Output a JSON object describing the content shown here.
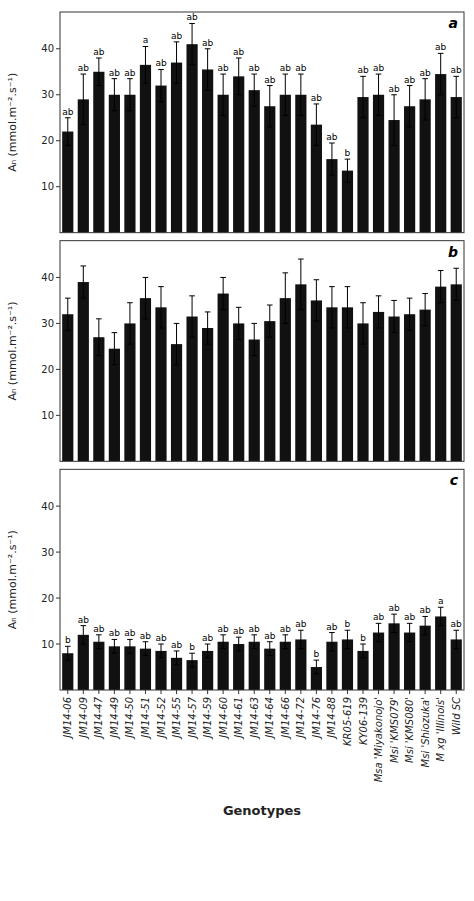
{
  "chart_data": [
    {
      "type": "bar",
      "title": "a",
      "ylabel": "Aₙ (mmol.m⁻².s⁻¹)",
      "categories": [
        "JM14-06",
        "JM14-09",
        "JM14-47",
        "JM14-49",
        "JM14-50",
        "JM14-51",
        "JM14-52",
        "JM14-55",
        "JM14-57",
        "JM14-59",
        "JM14-60",
        "JM14-61",
        "JM14-63",
        "JM14-64",
        "JM14-66",
        "JM14-72",
        "JM14-76",
        "JM14-88",
        "KR05-619",
        "KY06-139",
        "Msa 'Miyakonojo'",
        "Msi 'KMS079'",
        "Msi 'KMS080'",
        "Msi 'Shiozuka'",
        "M xg 'Illinois'",
        "Wild SC"
      ],
      "values": [
        22.0,
        29.0,
        35.0,
        30.0,
        30.0,
        36.5,
        32.0,
        37.0,
        41.0,
        35.5,
        30.0,
        34.0,
        31.0,
        27.5,
        30.0,
        30.0,
        23.5,
        16.0,
        13.5,
        29.5,
        30.0,
        24.5,
        27.5,
        29.0,
        34.5,
        29.5
      ],
      "errors": [
        3.0,
        5.5,
        3.0,
        3.5,
        3.5,
        4.0,
        3.5,
        4.5,
        4.5,
        4.5,
        4.5,
        4.0,
        3.5,
        4.5,
        4.5,
        4.5,
        4.5,
        3.5,
        2.5,
        4.5,
        4.5,
        5.5,
        4.5,
        4.5,
        4.5,
        4.5
      ],
      "annotations": [
        "ab",
        "ab",
        "ab",
        "ab",
        "ab",
        "a",
        "ab",
        "ab",
        "ab",
        "ab",
        "ab",
        "ab",
        "ab",
        "ab",
        "ab",
        "ab",
        "ab",
        "ab",
        "b",
        "ab",
        "ab",
        "ab",
        "ab",
        "ab",
        "ab",
        "ab"
      ],
      "color": "#111111",
      "ylim": [
        0,
        48
      ],
      "yticks": [
        10,
        20,
        30,
        40
      ],
      "grid": false,
      "tick_labels": "y"
    },
    {
      "type": "bar",
      "title": "b",
      "ylabel": "Aₙ (mmol.m⁻².s⁻¹)",
      "categories": [
        "JM14-06",
        "JM14-09",
        "JM14-47",
        "JM14-49",
        "JM14-50",
        "JM14-51",
        "JM14-52",
        "JM14-55",
        "JM14-57",
        "JM14-59",
        "JM14-60",
        "JM14-61",
        "JM14-63",
        "JM14-64",
        "JM14-66",
        "JM14-72",
        "JM14-76",
        "JM14-88",
        "KR05-619",
        "KY06-139",
        "Msa 'Miyakonojo'",
        "Msi 'KMS079'",
        "Msi 'KMS080'",
        "Msi 'Shiozuka'",
        "M xg 'Illinois'",
        "Wild SC"
      ],
      "values": [
        32.0,
        39.0,
        27.0,
        24.5,
        30.0,
        35.5,
        33.5,
        25.5,
        31.5,
        29.0,
        36.5,
        30.0,
        26.5,
        30.5,
        35.5,
        38.5,
        35.0,
        33.5,
        33.5,
        30.0,
        32.5,
        31.5,
        32.0,
        33.0,
        38.0,
        38.5
      ],
      "errors": [
        3.5,
        3.5,
        4.0,
        3.5,
        4.5,
        4.5,
        4.5,
        4.5,
        4.5,
        3.5,
        3.5,
        3.5,
        3.5,
        3.5,
        5.5,
        5.5,
        4.5,
        4.5,
        4.5,
        4.5,
        3.5,
        3.5,
        3.5,
        3.5,
        3.5,
        3.5
      ],
      "color": "#111111",
      "ylim": [
        0,
        48
      ],
      "yticks": [
        10,
        20,
        30,
        40
      ],
      "grid": false,
      "tick_labels": "y"
    },
    {
      "type": "bar",
      "title": "c",
      "ylabel": "Aₙ (mmol.m⁻².s⁻¹)",
      "xlabel": "Genotypes",
      "categories": [
        "JM14-06",
        "JM14-09",
        "JM14-47",
        "JM14-49",
        "JM14-50",
        "JM14-51",
        "JM14-52",
        "JM14-55",
        "JM14-57",
        "JM14-59",
        "JM14-60",
        "JM14-61",
        "JM14-63",
        "JM14-64",
        "JM14-66",
        "JM14-72",
        "JM14-76",
        "JM14-88",
        "KR05-619",
        "KY06-139",
        "Msa 'Miyakonojo'",
        "Msi 'KMS079'",
        "Msi 'KMS080'",
        "Msi 'Shiozuka'",
        "M xg 'Illinois'",
        "Wild SC"
      ],
      "values": [
        8.0,
        12.0,
        10.5,
        9.5,
        9.5,
        9.0,
        8.5,
        7.0,
        6.5,
        8.5,
        10.5,
        10.0,
        10.5,
        9.0,
        10.5,
        11.0,
        5.0,
        10.5,
        11.0,
        8.5,
        12.5,
        14.5,
        12.5,
        14.0,
        16.0,
        11.0
      ],
      "errors": [
        1.5,
        2.0,
        1.5,
        1.5,
        1.5,
        1.5,
        1.5,
        1.5,
        1.5,
        1.5,
        1.5,
        1.5,
        1.5,
        1.5,
        1.5,
        2.0,
        1.5,
        2.0,
        2.0,
        1.5,
        2.0,
        2.0,
        2.0,
        2.0,
        2.0,
        2.0
      ],
      "annotations": [
        "b",
        "ab",
        "ab",
        "ab",
        "ab",
        "ab",
        "ab",
        "ab",
        "b",
        "ab",
        "ab",
        "ab",
        "ab",
        "ab",
        "ab",
        "ab",
        "b",
        "ab",
        "b",
        "b",
        "ab",
        "ab",
        "ab",
        "ab",
        "a",
        "ab"
      ],
      "color": "#111111",
      "ylim": [
        0,
        48
      ],
      "yticks": [
        10,
        20,
        30,
        40
      ],
      "grid": false
    }
  ]
}
